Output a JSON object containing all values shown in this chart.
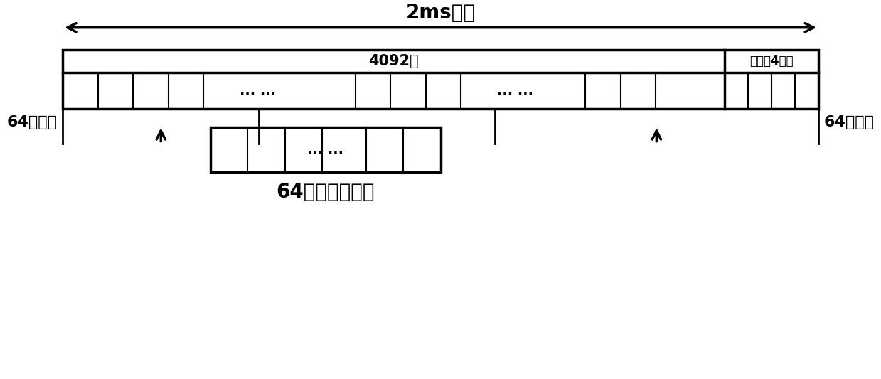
{
  "title_arrow_text": "2ms数据",
  "label_4092": "4092点",
  "label_buzero": "补零（4点）",
  "label_ellipsis": "... ...",
  "label_64acc": "64点累加",
  "label_64down": "64点降采样数据",
  "bg_color": "#ffffff",
  "box_color": "#000000",
  "text_color": "#000000",
  "font_size_title": 20,
  "font_size_label": 16,
  "font_size_box": 15,
  "font_size_small": 14
}
